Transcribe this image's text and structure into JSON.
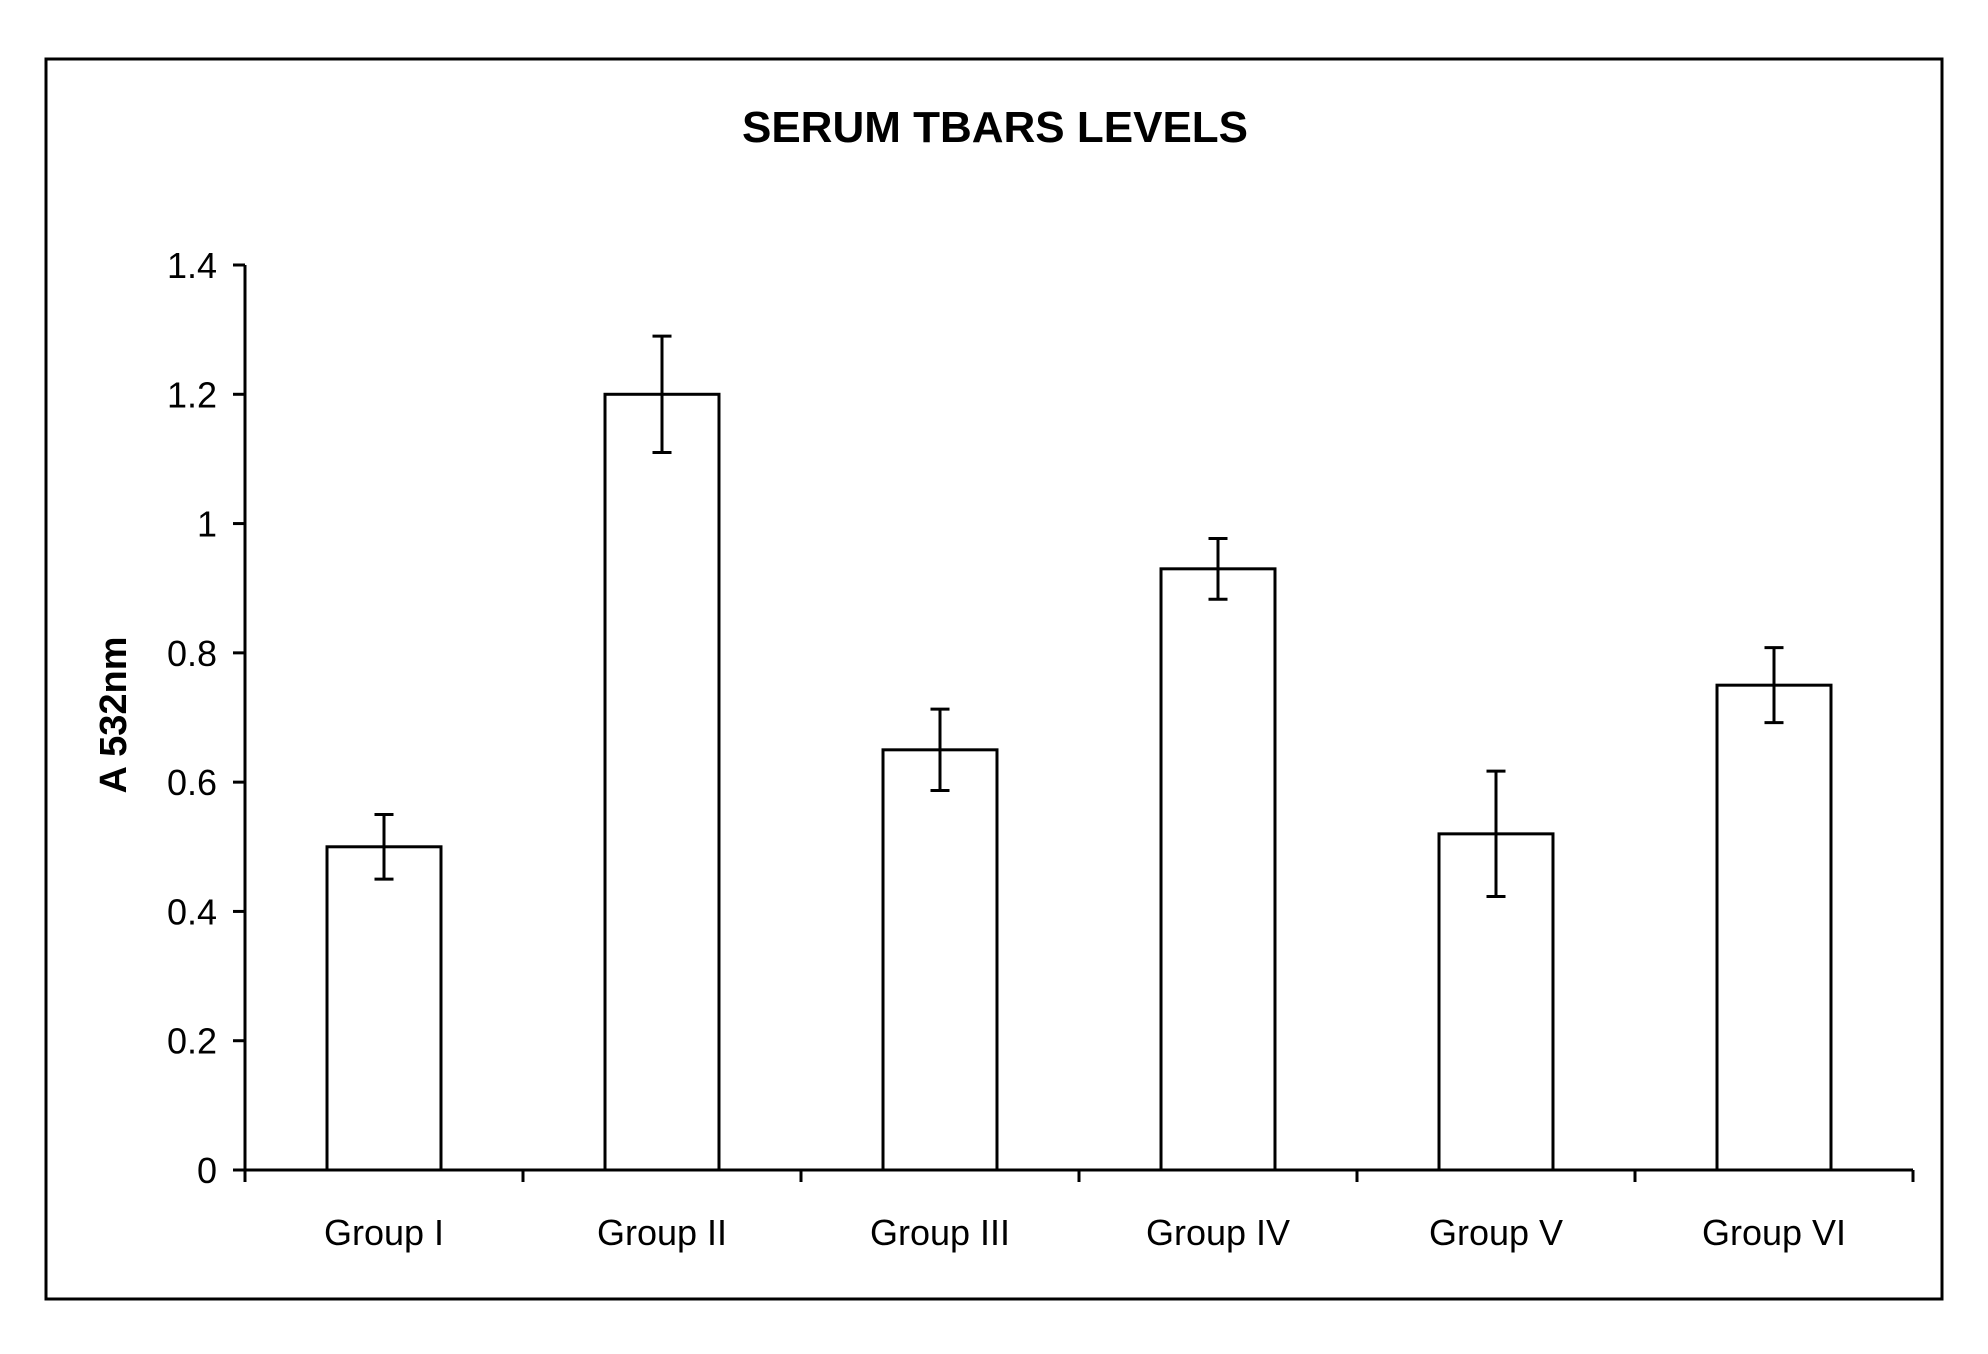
{
  "chart_data": {
    "type": "bar",
    "title": "SERUM TBARS LEVELS",
    "xlabel": "",
    "ylabel": "A 532nm",
    "categories": [
      "Group I",
      "Group II",
      "Group III",
      "Group IV",
      "Group V",
      "Group VI"
    ],
    "values": [
      0.5,
      1.2,
      0.65,
      0.93,
      0.52,
      0.75
    ],
    "error": [
      0.05,
      0.09,
      0.063,
      0.047,
      0.097,
      0.058
    ],
    "ylim": [
      0,
      1.4
    ],
    "yticks": [
      "0",
      "0.2",
      "0.4",
      "0.6",
      "0.8",
      "1",
      "1.2",
      "1.4"
    ],
    "grid": false,
    "bar_color": "#ffffff",
    "edge_color": "#000000"
  }
}
